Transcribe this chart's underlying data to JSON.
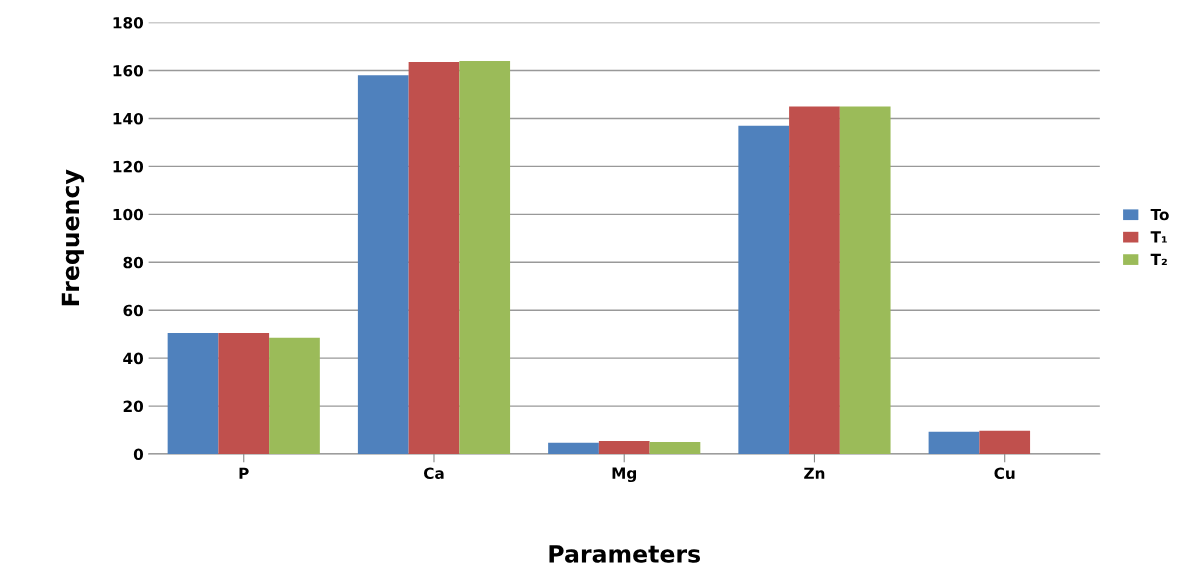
{
  "chart_data": {
    "type": "bar",
    "xlabel": "Parameters",
    "ylabel": "Frequency",
    "categories": [
      "P",
      "Ca",
      "Mg",
      "Zn",
      "Cu"
    ],
    "series": [
      {
        "name": "To",
        "color": "#4f81bd",
        "values": [
          50.5,
          158,
          4.7,
          137,
          9.3
        ]
      },
      {
        "name": "T₁",
        "color": "#c0504d",
        "values": [
          50.5,
          163.5,
          5.4,
          145,
          9.7
        ]
      },
      {
        "name": "T₂",
        "color": "#9bbb59",
        "values": [
          48.5,
          164,
          5.0,
          145,
          null
        ]
      }
    ],
    "ylim": [
      0,
      180
    ],
    "yticks": [
      0,
      20,
      40,
      60,
      80,
      100,
      120,
      140,
      160,
      180
    ],
    "grid": "y",
    "legend": "right"
  }
}
